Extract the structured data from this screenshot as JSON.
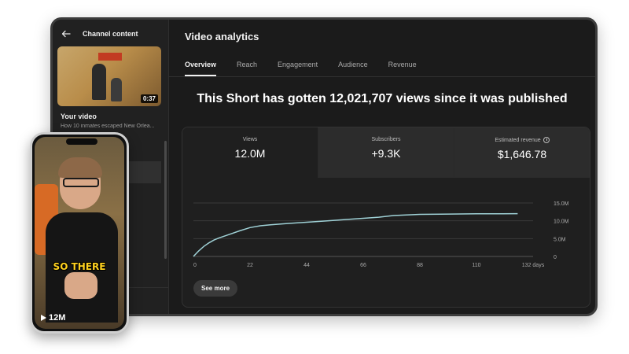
{
  "sidebar": {
    "title": "Channel content",
    "video_duration": "0:37",
    "video_heading": "Your video",
    "video_title": "How 10 inmates escaped New Orlea..."
  },
  "main": {
    "title": "Video analytics",
    "tabs": [
      {
        "label": "Overview",
        "active": true
      },
      {
        "label": "Reach",
        "active": false
      },
      {
        "label": "Engagement",
        "active": false
      },
      {
        "label": "Audience",
        "active": false
      },
      {
        "label": "Revenue",
        "active": false
      }
    ],
    "headline": "This Short has gotten 12,021,707 views since it was published",
    "metrics": [
      {
        "label": "Views",
        "value": "12.0M"
      },
      {
        "label": "Subscribers",
        "value": "+9.3K"
      },
      {
        "label": "Estimated revenue",
        "value": "$1,646.78"
      }
    ],
    "see_more": "See more"
  },
  "phone": {
    "caption": "SO THERE",
    "views": "12M"
  },
  "colors": {
    "line": "#9fd1d6",
    "background": "#1f1f1f"
  },
  "chart_data": {
    "type": "line",
    "x_ticks": [
      "0",
      "22",
      "44",
      "66",
      "88",
      "110",
      "132 days"
    ],
    "y_ticks": [
      "0",
      "5.0M",
      "10.0M",
      "15.0M"
    ],
    "ylim": [
      0,
      15000000
    ],
    "xlim": [
      0,
      132
    ],
    "grid": true,
    "series": [
      {
        "x": [
          0,
          2,
          4,
          6,
          8,
          10,
          14,
          18,
          22,
          26,
          30,
          36,
          44,
          52,
          60,
          66,
          72,
          78,
          88,
          100,
          110,
          120,
          126
        ],
        "y": [
          0,
          1500000,
          2800000,
          3800000,
          4600000,
          5200000,
          6200000,
          7200000,
          8100000,
          8600000,
          8900000,
          9200000,
          9600000,
          10000000,
          10400000,
          10700000,
          11000000,
          11500000,
          11800000,
          11900000,
          11950000,
          11980000,
          12000000
        ]
      }
    ]
  }
}
